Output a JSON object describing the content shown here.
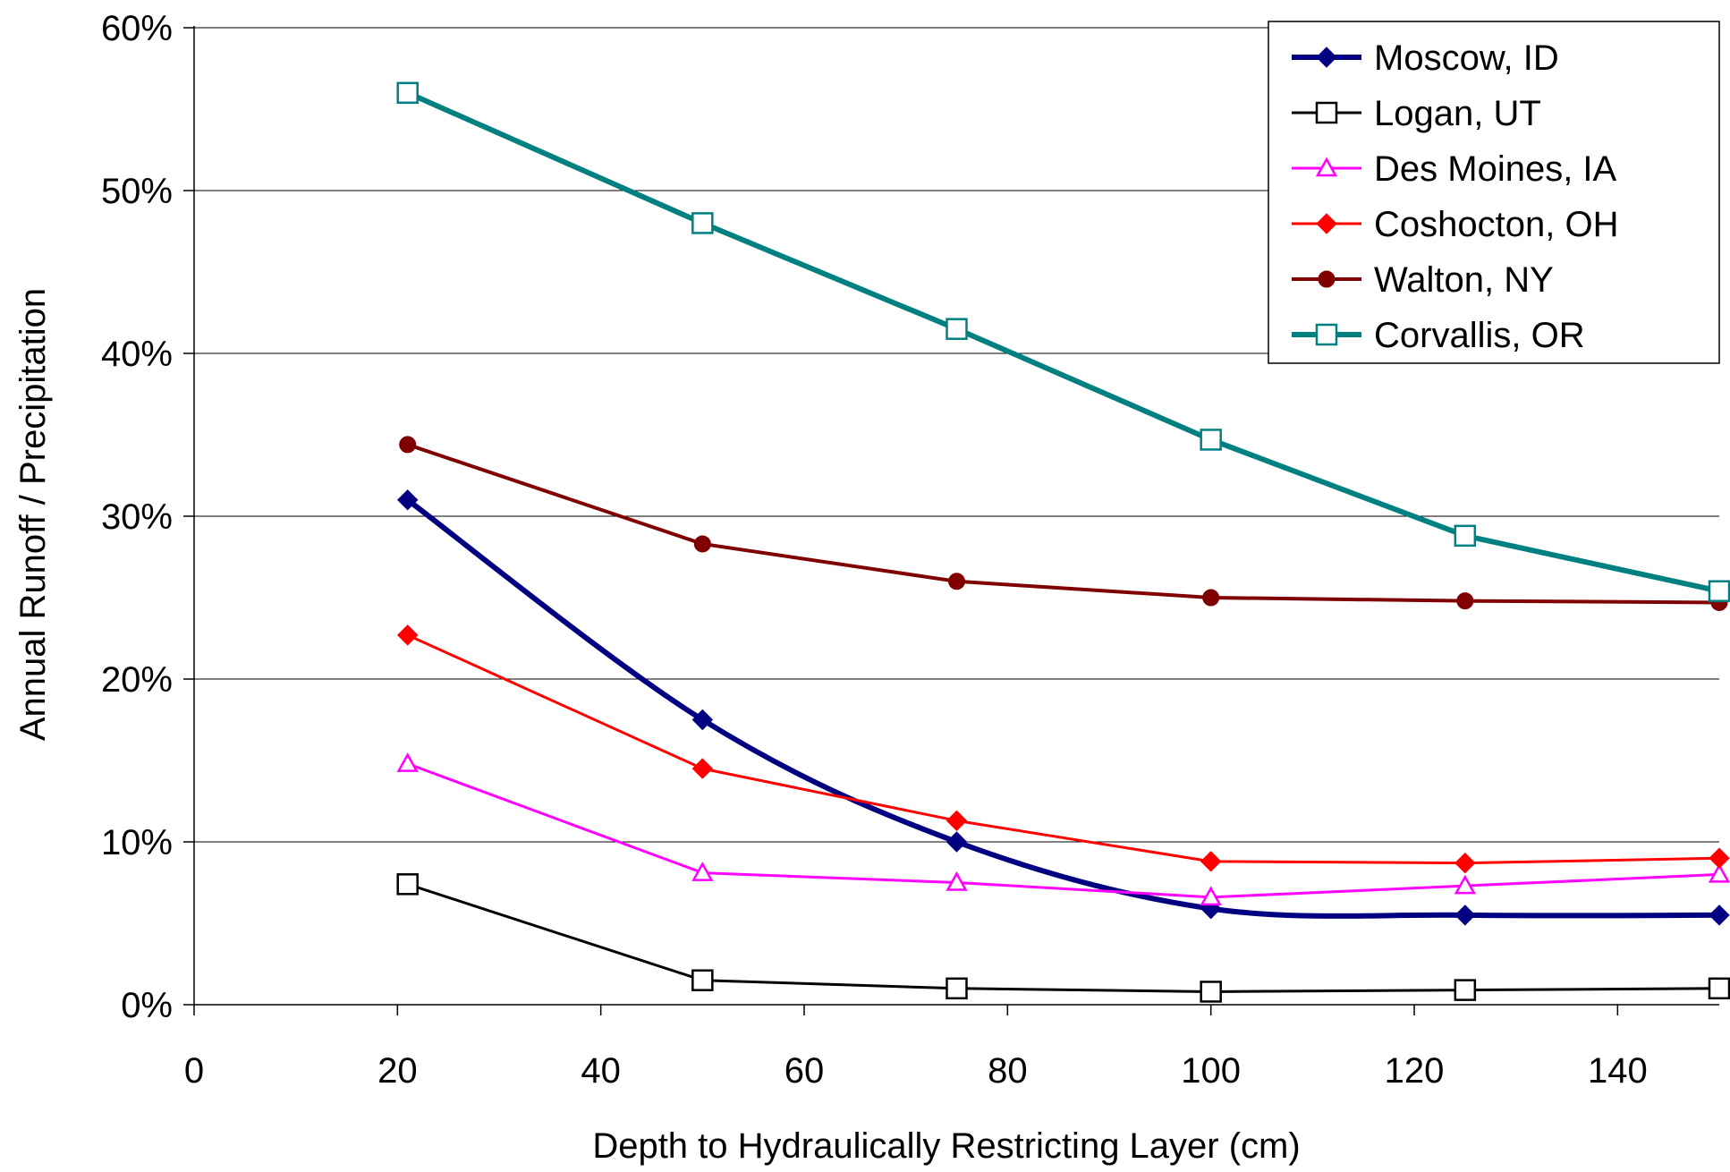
{
  "chart_data": {
    "type": "line",
    "title": "",
    "xlabel": "Depth to Hydraulically Restricting Layer (cm)",
    "ylabel": "Annual Runoff / Precipitation",
    "xlim": [
      0,
      150
    ],
    "ylim": [
      0,
      0.6
    ],
    "xticks": [
      0,
      20,
      40,
      60,
      80,
      100,
      120,
      140
    ],
    "yticks": [
      0,
      0.1,
      0.2,
      0.3,
      0.4,
      0.5,
      0.6
    ],
    "yticklabels": [
      "0%",
      "10%",
      "20%",
      "30%",
      "40%",
      "50%",
      "60%"
    ],
    "grid": "horizontal",
    "legend_position": "top-right",
    "x": [
      21,
      50,
      75,
      100,
      125,
      150
    ],
    "series": [
      {
        "name": "Moscow, ID",
        "values": [
          0.31,
          0.175,
          0.1,
          0.059,
          0.055,
          0.055
        ],
        "color": "#000080",
        "marker": "diamond-filled",
        "width": 6,
        "smooth": true
      },
      {
        "name": "Logan, UT",
        "values": [
          0.074,
          0.015,
          0.01,
          0.008,
          0.009,
          0.01
        ],
        "color": "#000000",
        "marker": "square-open",
        "width": 3
      },
      {
        "name": "Des Moines, IA",
        "values": [
          0.148,
          0.081,
          0.075,
          0.066,
          0.073,
          0.08
        ],
        "color": "#FF00FF",
        "marker": "triangle-open",
        "width": 3
      },
      {
        "name": "Coshocton, OH",
        "values": [
          0.227,
          0.145,
          0.113,
          0.088,
          0.087,
          0.09
        ],
        "color": "#FF0000",
        "marker": "diamond-filled",
        "width": 3
      },
      {
        "name": "Walton, NY",
        "values": [
          0.344,
          0.283,
          0.26,
          0.25,
          0.248,
          0.247
        ],
        "color": "#800000",
        "marker": "circle-filled",
        "width": 4
      },
      {
        "name": "Corvallis, OR",
        "values": [
          0.56,
          0.48,
          0.415,
          0.347,
          0.288,
          0.254
        ],
        "color": "#008080",
        "marker": "square-open",
        "width": 6
      }
    ]
  }
}
